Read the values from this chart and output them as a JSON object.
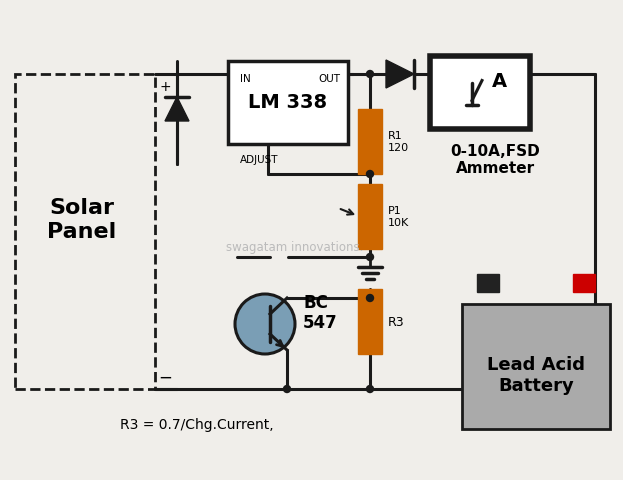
{
  "bg_color": "#f0eeea",
  "line_color": "#1a1a1a",
  "resistor_color": "#cc6600",
  "transistor_fill": "#7a9eb5",
  "battery_body": "#999999",
  "battery_pos": "#cc0000",
  "battery_neg": "#222222",
  "watermark": "swagatam innovations.",
  "label_solar": "Solar\nPanel",
  "label_lm338": "LM 338",
  "label_ammeter_box": "A",
  "label_ammeter": "0-10A,FSD\nAmmeter",
  "label_battery": "Lead Acid\nBattery",
  "label_bc547": "BC\n547",
  "label_r1": "R1\n120",
  "label_p1": "P1\n10K",
  "label_r3": "R3",
  "label_in": "IN",
  "label_out": "OUT",
  "label_adj": "ADJUST",
  "label_formula": "R3 = 0.7/Chg.Current,",
  "figsize": [
    6.23,
    4.81
  ],
  "dpi": 100
}
